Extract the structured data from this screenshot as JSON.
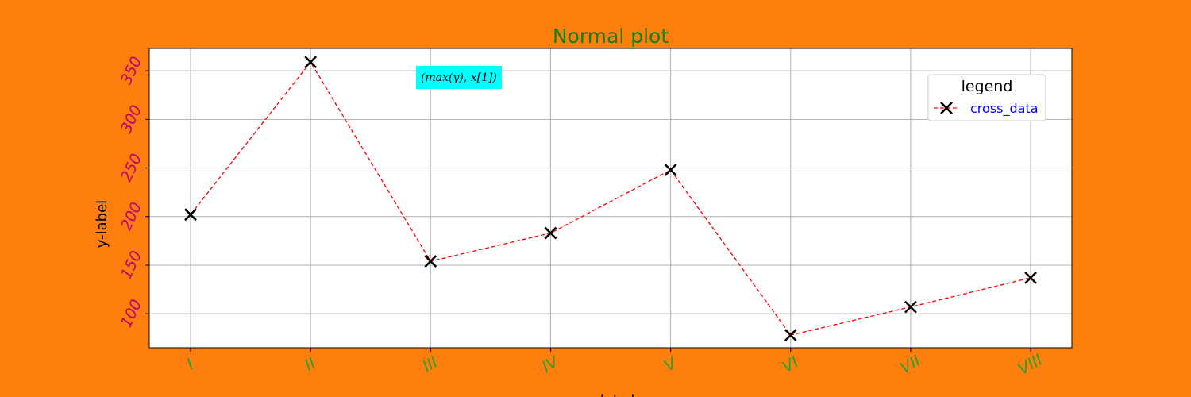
{
  "colors": {
    "background": "#ff7f0e",
    "title": "#108010",
    "ytick": "#c0006f",
    "xtick": "#2ca02c",
    "line": "#ff0000",
    "marker": "#000000",
    "annotation_bg": "#00ffff",
    "legend_text": "#0000ff",
    "grid": "#b0b0b0"
  },
  "chart_data": {
    "type": "line",
    "title": "Normal plot",
    "xlabel": "x-label",
    "ylabel": "y-label",
    "categories": [
      "I",
      "II",
      "III",
      "IV",
      "V",
      "VI",
      "VII",
      "VIII"
    ],
    "series": [
      {
        "name": "cross_data",
        "values": [
          202,
          359,
          154,
          183,
          248,
          78,
          107,
          137
        ],
        "marker": "x",
        "linestyle": "dashed"
      }
    ],
    "ylim": [
      65,
      373
    ],
    "yticks": [
      100,
      150,
      200,
      250,
      300,
      350
    ],
    "grid": true,
    "legend": {
      "title": "legend",
      "placement": "upper right"
    },
    "annotation": {
      "text": "(max(y), x[1])",
      "near_category": "III",
      "near_value": 341
    }
  }
}
